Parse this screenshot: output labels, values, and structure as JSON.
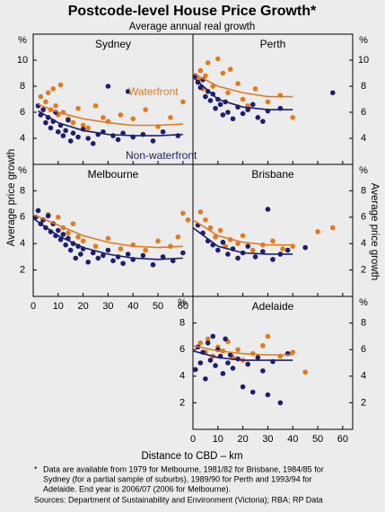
{
  "title": "Postcode-level House Price Growth*",
  "subtitle": "Average annual real growth",
  "y_label": "Average price growth",
  "x_label": "Distance to CBD – km",
  "y_unit": "%",
  "series_names": [
    "Waterfront",
    "Non-waterfront"
  ],
  "xlim": [
    0,
    64
  ],
  "xticks": [
    0,
    10,
    20,
    30,
    40,
    50,
    60
  ],
  "footnote_mark": "*",
  "footnote": [
    "Data are available from 1979 for Melbourne, 1981/82 for Brisbane, 1984/85 for",
    "Sydney (for a partial sample of suburbs), 1989/90 for Perth and 1993/94 for",
    "Adelaide. End year is 2006/07 (2006 for Melbourne)."
  ],
  "sources": "Sources: Department of Sustainability and Environment (Victoria); RBA; RP Data",
  "chart_data": [
    {
      "type": "scatter",
      "title": "Sydney",
      "ylim": [
        2,
        12
      ],
      "yticks": [
        4,
        6,
        8,
        10
      ],
      "series": [
        {
          "color": "#e07b1f",
          "x": [
            3,
            5,
            6,
            7,
            8,
            9,
            10,
            11,
            12,
            14,
            16,
            18,
            20,
            22,
            25,
            28,
            30,
            35,
            40,
            45,
            50,
            55,
            60
          ],
          "values": [
            7.2,
            6.8,
            7.5,
            6.2,
            7.8,
            6.5,
            5.8,
            8.1,
            6.0,
            5.5,
            5.2,
            6.3,
            5.0,
            4.8,
            6.5,
            5.6,
            5.3,
            5.8,
            5.5,
            6.2,
            4.9,
            5.6,
            6.8
          ],
          "trend": {
            "x": [
              2,
              10,
              20,
              30,
              40,
              50,
              60
            ],
            "values": [
              6.6,
              6.0,
              5.5,
              5.2,
              5.0,
              5.0,
              5.1
            ]
          }
        },
        {
          "color": "#1e1e6e",
          "x": [
            2,
            3,
            4,
            5,
            6,
            7,
            8,
            9,
            10,
            11,
            12,
            13,
            14,
            15,
            16,
            18,
            20,
            22,
            24,
            26,
            28,
            30,
            32,
            34,
            36,
            38,
            40,
            44,
            48,
            52,
            58
          ],
          "values": [
            6.5,
            5.8,
            6.2,
            5.2,
            5.6,
            4.8,
            5.3,
            6.0,
            4.5,
            5.0,
            4.2,
            4.6,
            5.4,
            3.8,
            4.4,
            4.1,
            4.7,
            4.0,
            3.6,
            4.3,
            4.5,
            8.0,
            4.2,
            3.9,
            4.4,
            7.6,
            4.1,
            4.3,
            3.8,
            4.5,
            4.2
          ],
          "trend": {
            "x": [
              2,
              10,
              20,
              30,
              40,
              50,
              60
            ],
            "values": [
              6.1,
              5.2,
              4.6,
              4.3,
              4.2,
              4.2,
              4.3
            ]
          }
        }
      ]
    },
    {
      "type": "scatter",
      "title": "Perth",
      "ylim": [
        2,
        12
      ],
      "yticks": [
        4,
        6,
        8,
        10
      ],
      "series": [
        {
          "color": "#e07b1f",
          "x": [
            2,
            3,
            4,
            5,
            6,
            8,
            10,
            12,
            14,
            15,
            18,
            20,
            22,
            25,
            30,
            35,
            40
          ],
          "values": [
            8.5,
            9.2,
            7.8,
            8.8,
            9.8,
            8.0,
            10.1,
            9.0,
            7.5,
            9.3,
            8.2,
            7.0,
            6.5,
            7.8,
            6.8,
            7.3,
            5.6
          ],
          "trend": {
            "x": [
              0,
              10,
              20,
              30,
              40
            ],
            "values": [
              9.0,
              8.0,
              7.5,
              7.2,
              7.2
            ]
          }
        },
        {
          "color": "#1e1e6e",
          "x": [
            1,
            2,
            3,
            4,
            5,
            6,
            7,
            8,
            9,
            10,
            11,
            12,
            13,
            14,
            16,
            18,
            20,
            22,
            24,
            26,
            28,
            30,
            35,
            56
          ],
          "values": [
            8.8,
            8.3,
            7.9,
            8.5,
            7.2,
            7.6,
            6.9,
            7.4,
            6.3,
            7.0,
            6.6,
            5.8,
            6.8,
            6.0,
            5.5,
            6.4,
            5.9,
            6.2,
            6.6,
            5.6,
            5.3,
            6.1,
            6.3,
            7.5
          ],
          "trend": {
            "x": [
              0,
              10,
              20,
              30,
              40
            ],
            "values": [
              8.7,
              7.0,
              6.4,
              6.2,
              6.2
            ]
          }
        }
      ]
    },
    {
      "type": "scatter",
      "title": "Melbourne",
      "ylim": [
        0,
        10
      ],
      "yticks": [
        2,
        4,
        6,
        8
      ],
      "series": [
        {
          "color": "#e07b1f",
          "x": [
            2,
            4,
            6,
            8,
            10,
            12,
            14,
            16,
            18,
            20,
            25,
            30,
            35,
            40,
            45,
            50,
            55,
            58,
            60,
            62
          ],
          "values": [
            6.5,
            5.8,
            6.2,
            5.5,
            6.0,
            5.2,
            4.8,
            5.5,
            4.5,
            4.2,
            3.8,
            4.4,
            3.6,
            3.9,
            3.5,
            4.2,
            3.8,
            4.5,
            6.3,
            5.8
          ],
          "trend": {
            "x": [
              0,
              10,
              20,
              30,
              40,
              50,
              60
            ],
            "values": [
              6.2,
              5.4,
              4.6,
              4.1,
              3.8,
              3.7,
              3.8
            ]
          }
        },
        {
          "color": "#1e1e6e",
          "x": [
            1,
            2,
            3,
            4,
            5,
            6,
            7,
            8,
            9,
            10,
            11,
            12,
            13,
            14,
            15,
            16,
            17,
            18,
            19,
            20,
            22,
            24,
            26,
            28,
            30,
            32,
            34,
            36,
            38,
            40,
            44,
            48,
            52,
            56,
            60
          ],
          "values": [
            6.0,
            6.5,
            5.5,
            5.8,
            5.2,
            6.1,
            4.9,
            5.5,
            4.6,
            5.0,
            4.3,
            4.7,
            3.9,
            4.4,
            3.5,
            4.0,
            2.9,
            3.8,
            3.2,
            3.6,
            2.6,
            3.3,
            2.9,
            3.1,
            3.5,
            2.7,
            3.0,
            2.5,
            3.2,
            2.8,
            3.1,
            2.4,
            3.0,
            2.7,
            3.3
          ],
          "trend": {
            "x": [
              0,
              10,
              20,
              30,
              40,
              50,
              60
            ],
            "values": [
              5.9,
              4.6,
              3.7,
              3.2,
              2.9,
              2.8,
              2.9
            ]
          }
        }
      ]
    },
    {
      "type": "scatter",
      "title": "Brisbane",
      "ylim": [
        0,
        10
      ],
      "yticks": [
        2,
        4,
        6,
        8
      ],
      "series": [
        {
          "color": "#e07b1f",
          "x": [
            3,
            5,
            7,
            9,
            11,
            13,
            15,
            18,
            20,
            24,
            28,
            32,
            36,
            40,
            50,
            56
          ],
          "values": [
            6.4,
            5.8,
            5.2,
            4.5,
            5.0,
            3.8,
            4.3,
            4.0,
            4.6,
            3.5,
            3.9,
            4.2,
            3.6,
            3.8,
            4.9,
            5.2
          ],
          "trend": {
            "x": [
              0,
              10,
              20,
              30,
              40
            ],
            "values": [
              5.8,
              4.6,
              4.1,
              3.9,
              3.9
            ]
          }
        },
        {
          "color": "#1e1e6e",
          "x": [
            2,
            4,
            6,
            8,
            10,
            12,
            14,
            16,
            18,
            20,
            22,
            25,
            28,
            30,
            32,
            35,
            38,
            45
          ],
          "values": [
            5.4,
            4.8,
            4.2,
            3.9,
            3.5,
            4.1,
            3.2,
            3.6,
            2.9,
            3.3,
            3.8,
            3.0,
            3.4,
            6.6,
            2.8,
            3.2,
            3.5,
            3.7
          ],
          "trend": {
            "x": [
              0,
              10,
              20,
              30,
              40
            ],
            "values": [
              5.2,
              3.8,
              3.3,
              3.2,
              3.2
            ]
          }
        }
      ]
    },
    {
      "type": "scatter",
      "title": "Adelaide",
      "ylim": [
        0,
        10
      ],
      "yticks": [
        2,
        4,
        6,
        8
      ],
      "series": [
        {
          "color": "#e07b1f",
          "x": [
            3,
            5,
            6,
            8,
            10,
            12,
            14,
            16,
            18,
            20,
            24,
            28,
            30,
            35,
            40,
            45
          ],
          "values": [
            6.5,
            5.8,
            6.8,
            5.5,
            6.2,
            5.9,
            6.6,
            5.4,
            6.0,
            5.2,
            5.7,
            6.3,
            7.0,
            5.5,
            5.8,
            4.3
          ],
          "trend": {
            "x": [
              0,
              10,
              20,
              30,
              40
            ],
            "values": [
              6.3,
              5.9,
              5.7,
              5.6,
              5.6
            ]
          }
        },
        {
          "color": "#1e1e6e",
          "x": [
            1,
            2,
            3,
            4,
            5,
            6,
            7,
            8,
            9,
            10,
            11,
            12,
            13,
            14,
            15,
            16,
            18,
            20,
            22,
            24,
            26,
            28,
            30,
            32,
            35,
            38
          ],
          "values": [
            4.5,
            6.2,
            5.0,
            5.8,
            3.8,
            6.5,
            5.2,
            7.0,
            4.8,
            6.0,
            5.5,
            4.2,
            6.8,
            5.0,
            5.6,
            4.6,
            5.3,
            3.2,
            4.9,
            2.8,
            5.4,
            4.4,
            2.6,
            5.1,
            2.0,
            5.7
          ],
          "trend": {
            "x": [
              0,
              10,
              20,
              30,
              40
            ],
            "values": [
              5.9,
              5.4,
              5.2,
              5.2,
              5.2
            ]
          }
        }
      ]
    }
  ]
}
